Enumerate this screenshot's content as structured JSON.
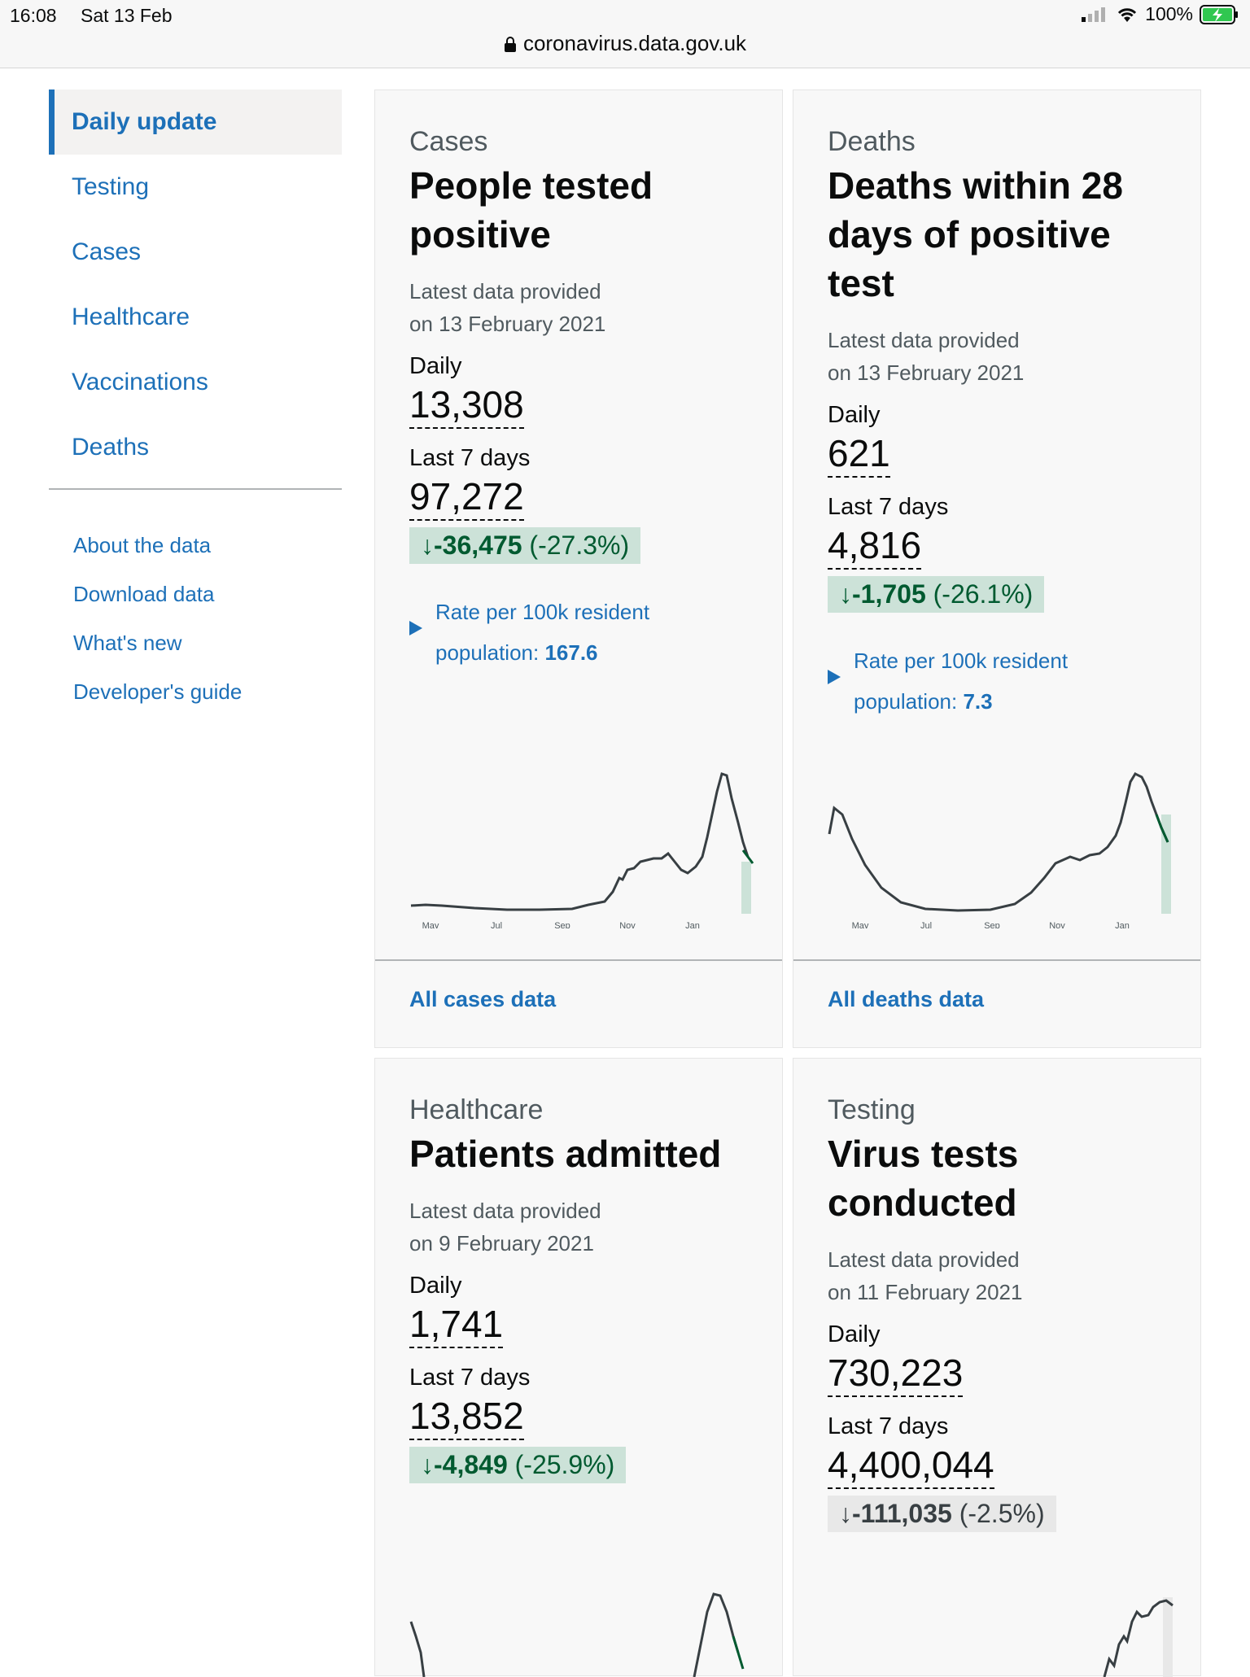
{
  "status": {
    "time": "16:08",
    "date": "Sat 13 Feb",
    "battery": "100%"
  },
  "browser": {
    "url": "coronavirus.data.gov.uk"
  },
  "sidebar": {
    "items": [
      "Daily update",
      "Testing",
      "Cases",
      "Healthcare",
      "Vaccinations",
      "Deaths"
    ],
    "links": [
      "About the data",
      "Download data",
      "What's new",
      "Developer's guide"
    ]
  },
  "cards": [
    {
      "category": "Cases",
      "heading": "People tested positive",
      "latest_line1": "Latest data provided",
      "latest_line2": "on 13 February 2021",
      "daily_label": "Daily",
      "daily_value": "13,308",
      "week_label": "Last 7 days",
      "week_value": "97,272",
      "change_value": "-36,475",
      "change_pct": "(-27.3%)",
      "rate_line1": "Rate per 100k resident",
      "rate_prefix": "population: ",
      "rate_value": "167.6",
      "months": [
        "May",
        "Jul",
        "Sep",
        "Nov",
        "Jan"
      ],
      "footer_link": "All cases data"
    },
    {
      "category": "Deaths",
      "heading": "Deaths within 28 days of positive test",
      "latest_line1": "Latest data provided",
      "latest_line2": "on 13 February 2021",
      "daily_label": "Daily",
      "daily_value": "621",
      "week_label": "Last 7 days",
      "week_value": "4,816",
      "change_value": "-1,705",
      "change_pct": "(-26.1%)",
      "rate_line1": "Rate per 100k resident",
      "rate_prefix": "population: ",
      "rate_value": "7.3",
      "months": [
        "May",
        "Jul",
        "Sep",
        "Nov",
        "Jan"
      ],
      "footer_link": "All deaths data"
    },
    {
      "category": "Healthcare",
      "heading": "Patients admitted",
      "latest_line1": "Latest data provided",
      "latest_line2": "on 9 February 2021",
      "daily_label": "Daily",
      "daily_value": "1,741",
      "week_label": "Last 7 days",
      "week_value": "13,852",
      "change_value": "-4,849",
      "change_pct": "(-25.9%)"
    },
    {
      "category": "Testing",
      "heading": "Virus tests conducted",
      "latest_line1": "Latest data provided",
      "latest_line2": "on 11 February 2021",
      "daily_label": "Daily",
      "daily_value": "730,223",
      "week_label": "Last 7 days",
      "week_value": "4,400,044",
      "change_value": "-111,035",
      "change_pct": "(-2.5%)"
    }
  ],
  "colors": {
    "link": "#1d70b8",
    "positive_bg": "#cce2d8",
    "positive_text": "#005a30",
    "neutral_bg": "#e8e8e8"
  },
  "icons": {
    "lock": "lock-icon",
    "wifi": "wifi-icon",
    "signal": "signal-icon",
    "battery": "battery-icon",
    "down-arrow": "arrow-down-icon"
  }
}
